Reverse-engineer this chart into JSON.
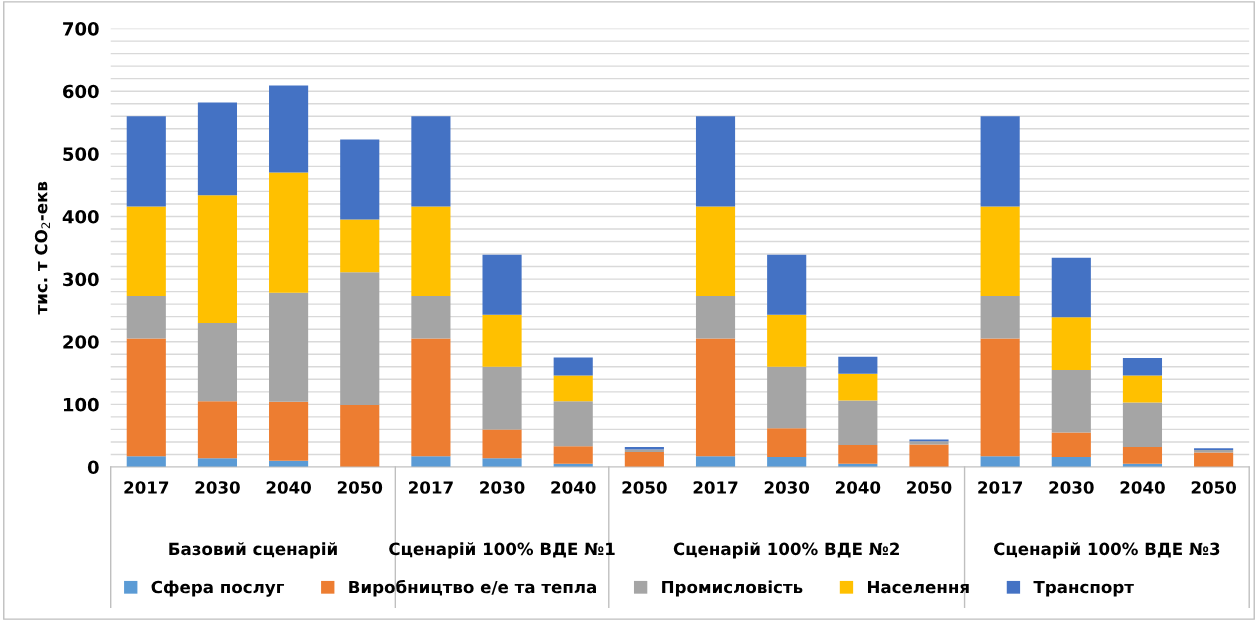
{
  "chart_data": {
    "type": "bar",
    "stacked": true,
    "ylabel": "тис. т CO$_{2}$-екв",
    "categories": [
      "2017",
      "2030",
      "2040",
      "2050",
      "2017",
      "2030",
      "2040",
      "2050",
      "2017",
      "2030",
      "2040",
      "2050",
      "2017",
      "2030",
      "2040",
      "2050"
    ],
    "annotations": [
      "Базовий сценарій",
      "Сценарій 100% ВДЕ №1",
      "Сценарій 100% ВДЕ №2",
      "Сценарій 100% ВДЕ №3"
    ],
    "series": [
      {
        "name": "Сфера послуг",
        "color": "#5b9bd5",
        "values": [
          17,
          14,
          10,
          null,
          17,
          14,
          5,
          null,
          17,
          16,
          5,
          null,
          17,
          16,
          5,
          null
        ]
      },
      {
        "name": "Виробництво е/е та тепла",
        "color": "#ed7d31",
        "values": [
          188,
          91,
          94,
          99,
          188,
          46,
          28,
          24,
          188,
          46,
          30,
          36,
          188,
          39,
          27,
          23
        ]
      },
      {
        "name": "Промисловість",
        "color": "#a5a5a5",
        "values": [
          68,
          125,
          174,
          212,
          68,
          100,
          72,
          4,
          68,
          98,
          71,
          5,
          68,
          100,
          71,
          4
        ]
      },
      {
        "name": "Населення",
        "color": "#ffc000",
        "values": [
          143,
          204,
          192,
          84,
          143,
          83,
          41,
          0,
          143,
          83,
          43,
          0,
          143,
          84,
          43,
          0
        ]
      },
      {
        "name": "Транспорт",
        "color": "#4472c4",
        "values": [
          144,
          148,
          139,
          128,
          144,
          96,
          29,
          4,
          144,
          96,
          27,
          3,
          144,
          95,
          28,
          3
        ]
      }
    ],
    "ylim": [
      0,
      700
    ],
    "yticks": [
      0,
      {
        "value": 20,
        "label": null
      },
      {
        "value": 40,
        "label": null
      },
      {
        "value": 60,
        "label": null
      },
      {
        "value": 80,
        "label": null
      },
      100,
      {
        "value": 120,
        "label": null
      },
      {
        "value": 140,
        "label": null
      },
      {
        "value": 160,
        "label": null
      },
      {
        "value": 180,
        "label": null
      },
      200,
      {
        "value": 220,
        "label": null
      },
      {
        "value": 240,
        "label": null
      },
      {
        "value": 260,
        "label": null
      },
      {
        "value": 280,
        "label": null
      },
      300,
      {
        "value": 320,
        "label": null
      },
      {
        "value": 340,
        "label": null
      },
      {
        "value": 360,
        "label": null
      },
      {
        "value": 380,
        "label": null
      },
      400,
      {
        "value": 420,
        "label": null
      },
      {
        "value": 440,
        "label": null
      },
      {
        "value": 460,
        "label": null
      },
      {
        "value": 480,
        "label": null
      },
      500,
      {
        "value": 520,
        "label": null
      },
      {
        "value": 540,
        "label": null
      },
      {
        "value": 560,
        "label": null
      },
      {
        "value": 580,
        "label": null
      },
      600,
      {
        "value": 620,
        "label": null
      },
      {
        "value": 640,
        "label": null
      },
      {
        "value": 660,
        "label": null
      },
      {
        "value": 680,
        "label": null
      },
      700
    ],
    "grid": "y",
    "legend": "bottom"
  }
}
